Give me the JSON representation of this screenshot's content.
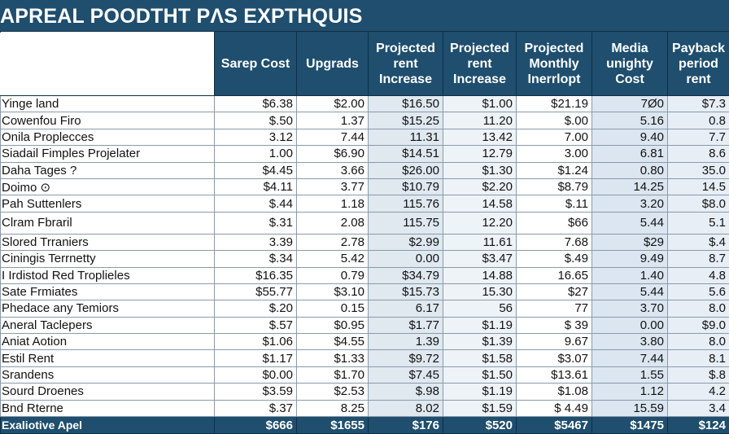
{
  "title": "APREAL POODTHT PΛS EXPTHQUIS",
  "columns": [
    "",
    "Sarep Cost",
    "Upgrads",
    "Projected rent Increase",
    "Projected rent Increase",
    "Projected Monthly Inerrlopt",
    "Media unighty Cost",
    "Payback period rent"
  ],
  "rows": [
    {
      "label": "Yinge land",
      "values": [
        "$6.38",
        "$2.00",
        "$16.50",
        "$1.00",
        "$21.19",
        "7Ø0",
        "$7.3"
      ]
    },
    {
      "label": "Cowenfou Firo",
      "values": [
        "$.50",
        "1.37",
        "$15.25",
        "11.20",
        "$.00",
        "5.16",
        "0.8"
      ]
    },
    {
      "label": "Onila Proplecces",
      "values": [
        "3.12",
        "7.44",
        "11.31",
        "13.42",
        "7.00",
        "9.40",
        "7.7"
      ]
    },
    {
      "label": "Siadail Fimples Projelater",
      "values": [
        "1.00",
        "$6.90",
        "$14.51",
        "12.79",
        "3.00",
        "6.81",
        "8.6"
      ]
    },
    {
      "label": "Daha Tages ?",
      "values": [
        "$4.45",
        "3.66",
        "$26.00",
        "$1.30",
        "$1.24",
        "0.80",
        "35.0"
      ]
    },
    {
      "label": "Doimo ⊙",
      "values": [
        "$4.11",
        "3.77",
        "$10.79",
        "$2.20",
        "$8.79",
        "14.25",
        "14.5"
      ]
    },
    {
      "label": "Pah Suttenlers",
      "values": [
        "$.44",
        "1.18",
        "115.76",
        "14.58",
        "$.11",
        "3.20",
        "$8.0"
      ]
    },
    {
      "label": "Clram Fbraril",
      "values": [
        "$.31",
        "2.08",
        "115.75",
        "12.20",
        "$66",
        "5.44",
        "5.1"
      ],
      "tall": true
    },
    {
      "label": "Slored Trraniers",
      "values": [
        "3.39",
        "2.78",
        "$2.99",
        "11.61",
        "7.68",
        "$29",
        "$.4"
      ]
    },
    {
      "label": "Ciningis Terrnetty",
      "values": [
        "$.34",
        "5.42",
        "0.00",
        "$3.47",
        "$.49",
        "9.49",
        "8.7"
      ]
    },
    {
      "label": "I Irdistod Red Troplieles",
      "values": [
        "$16.35",
        "0.79",
        "$34.79",
        "14.88",
        "16.65",
        "1.40",
        "4.8"
      ]
    },
    {
      "label": "Sate Frmiates",
      "values": [
        "$55.77",
        "$3.10",
        "$15.73",
        "15.30",
        "$27",
        "5.44",
        "5.6"
      ]
    },
    {
      "label": "Phedace any Temiors",
      "values": [
        "$.20",
        "0.15",
        "6.17",
        "56",
        "77",
        "3.70",
        "8.0"
      ]
    },
    {
      "label": "Aneral Taclepers",
      "values": [
        "$.57",
        "$0.95",
        "$1.77",
        "$1.19",
        "$ 39",
        "0.00",
        "$9.0"
      ]
    },
    {
      "label": "Aniat Aotion",
      "values": [
        "$1.06",
        "$4.55",
        "1.39",
        "$1.39",
        "9.67",
        "3.80",
        "8.0"
      ]
    },
    {
      "label": "Estil Rent",
      "values": [
        "$1.17",
        "$1.33",
        "$9.72",
        "$1.58",
        "$3.07",
        "7.44",
        "8.1"
      ]
    },
    {
      "label": "Srandens",
      "values": [
        "$0.00",
        "$1.70",
        "$7.45",
        "$1.50",
        "$13.61",
        "1.55",
        "$.8"
      ]
    },
    {
      "label": "Sourd Droenes",
      "values": [
        "$3.59",
        "$2.53",
        "$.98",
        "$1.19",
        "$1.08",
        "1.12",
        "4.2"
      ]
    },
    {
      "label": "Bnd Rterne",
      "values": [
        "$.37",
        "8.25",
        "8.02",
        "$1.59",
        "$ 4.49",
        "15.59",
        "3.4"
      ]
    }
  ],
  "total": {
    "label": "Exaliotive Apel",
    "values": [
      "$666",
      "$1655",
      "$176",
      "$520",
      "$5467",
      "$1475",
      "$124"
    ]
  },
  "colors": {
    "header": "#1f4e6e",
    "tint": "#e0e8f0"
  }
}
